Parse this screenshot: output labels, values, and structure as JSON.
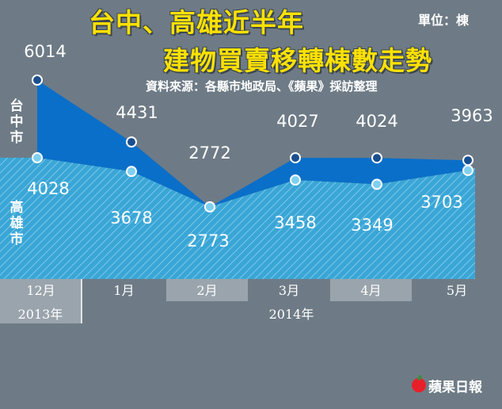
{
  "title": {
    "line1": "台中、高雄近半年",
    "line2": "建物買賣移轉棟數走勢"
  },
  "unit": "單位：棟",
  "source": "資料來源：各縣市地政局、《蘋果》採訪整理",
  "series_labels": {
    "taichung": "台中市",
    "kaohsiung": "高雄市"
  },
  "logo": "蘋果日報",
  "colors": {
    "taichung": "#0a6fc9",
    "kaohsiung": "#3aa6d6",
    "background": "#6e7b86",
    "title": "#ffe100"
  },
  "chart_data": {
    "type": "area",
    "categories": [
      "12月",
      "1月",
      "2月",
      "3月",
      "4月",
      "5月"
    ],
    "year_labels": [
      {
        "label": "2013年",
        "span": [
          "12月"
        ]
      },
      {
        "label": "2014年",
        "span": [
          "1月",
          "2月",
          "3月",
          "4月",
          "5月"
        ]
      }
    ],
    "series": [
      {
        "name": "台中市",
        "values": [
          6014,
          4431,
          2772,
          4027,
          4024,
          3963
        ]
      },
      {
        "name": "高雄市",
        "values": [
          4028,
          3678,
          2773,
          3458,
          3349,
          3703
        ]
      }
    ],
    "ylim": [
      0,
      6400
    ],
    "grid": false,
    "legend": "left"
  }
}
